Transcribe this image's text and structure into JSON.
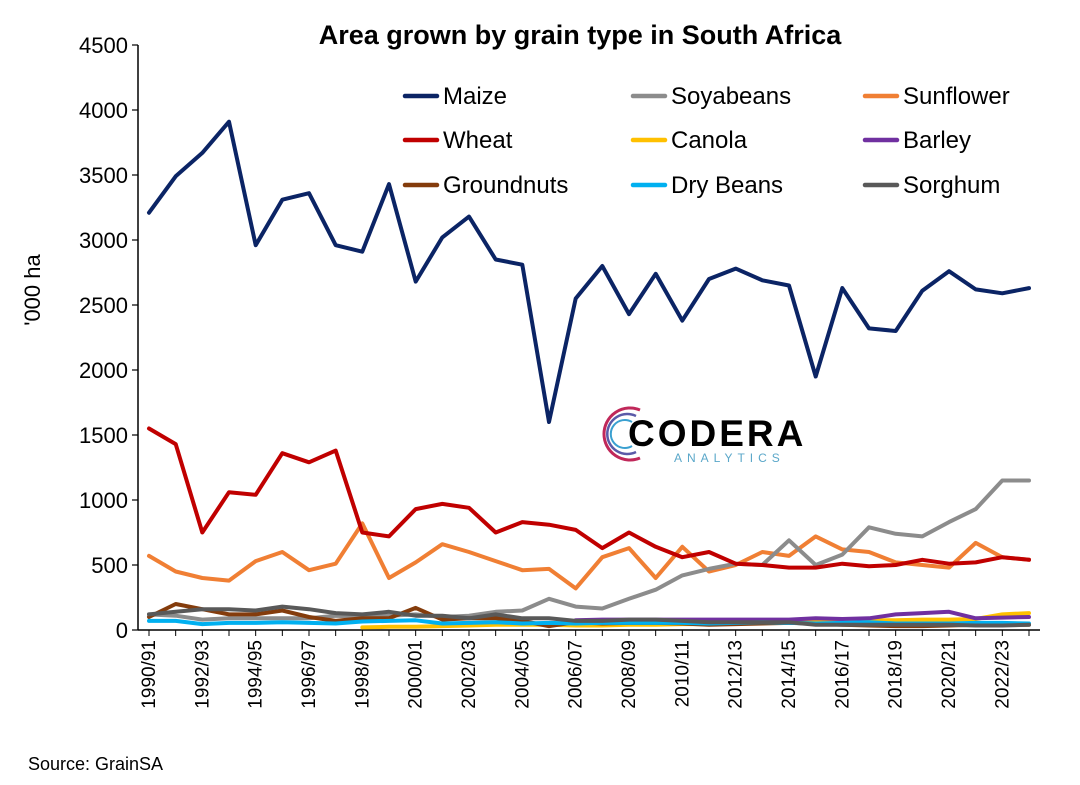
{
  "source": "Source: GrainSA",
  "logo": {
    "name": "CODERA",
    "sub": "ANALYTICS"
  },
  "chart_data": {
    "type": "line",
    "title": "Area grown by grain type in South Africa",
    "ylabel": "'000 ha",
    "xlabel": "",
    "ylim": [
      0,
      4500
    ],
    "yticks": [
      0,
      500,
      1000,
      1500,
      2000,
      2500,
      3000,
      3500,
      4000,
      4500
    ],
    "grid": false,
    "legend_position": "top-right",
    "categories": [
      "1990/91",
      "1991/92",
      "1992/93",
      "1993/94",
      "1994/95",
      "1995/96",
      "1996/97",
      "1997/98",
      "1998/99",
      "1999/00",
      "2000/01",
      "2001/02",
      "2002/03",
      "2003/04",
      "2004/05",
      "2005/06",
      "2006/07",
      "2007/08",
      "2008/09",
      "2009/10",
      "2010/11",
      "2011/12",
      "2012/13",
      "2013/14",
      "2014/15",
      "2015/16",
      "2016/17",
      "2017/18",
      "2018/19",
      "2019/20",
      "2020/21",
      "2021/22",
      "2022/23",
      "2023/24"
    ],
    "xtick_labels": [
      "1990/91",
      "1992/93",
      "1994/95",
      "1996/97",
      "1998/99",
      "2000/01",
      "2002/03",
      "2004/05",
      "2006/07",
      "2008/09",
      "2010/11",
      "2012/13",
      "2014/15",
      "2016/17",
      "2018/19",
      "2020/21",
      "2022/23"
    ],
    "series": [
      {
        "name": "Maize",
        "color": "#0b2465",
        "values": [
          3210,
          3490,
          3670,
          3910,
          2960,
          3310,
          3360,
          2960,
          2910,
          3430,
          2680,
          3020,
          3180,
          2850,
          2810,
          1600,
          2550,
          2800,
          2430,
          2740,
          2380,
          2700,
          2780,
          2690,
          2650,
          1950,
          2630,
          2320,
          2300,
          2610,
          2760,
          2620,
          2590,
          2630
        ]
      },
      {
        "name": "Soyabeans",
        "color": "#8c8c8c",
        "values": [
          120,
          110,
          80,
          90,
          90,
          90,
          90,
          110,
          100,
          110,
          120,
          100,
          110,
          140,
          150,
          240,
          180,
          165,
          240,
          310,
          420,
          470,
          510,
          500,
          690,
          500,
          580,
          790,
          740,
          720,
          830,
          930,
          1150,
          1150
        ]
      },
      {
        "name": "Sunflower",
        "color": "#f07f34",
        "values": [
          570,
          450,
          400,
          380,
          530,
          600,
          460,
          510,
          820,
          400,
          520,
          660,
          600,
          530,
          460,
          470,
          320,
          560,
          630,
          400,
          640,
          450,
          500,
          600,
          570,
          720,
          620,
          600,
          520,
          500,
          480,
          670,
          560,
          540
        ]
      },
      {
        "name": "Wheat",
        "color": "#c00000",
        "values": [
          1550,
          1430,
          750,
          1060,
          1040,
          1360,
          1290,
          1380,
          750,
          720,
          930,
          970,
          940,
          750,
          830,
          810,
          770,
          630,
          750,
          640,
          560,
          600,
          510,
          500,
          480,
          480,
          510,
          490,
          500,
          540,
          510,
          520,
          560,
          540
        ]
      },
      {
        "name": "Canola",
        "color": "#ffc000",
        "values": [
          null,
          null,
          null,
          null,
          null,
          null,
          null,
          null,
          20,
          25,
          25,
          30,
          35,
          40,
          40,
          40,
          35,
          35,
          40,
          40,
          45,
          45,
          50,
          55,
          75,
          70,
          70,
          75,
          75,
          80,
          80,
          85,
          120,
          130
        ]
      },
      {
        "name": "Barley",
        "color": "#7030a0",
        "values": [
          null,
          null,
          null,
          null,
          null,
          null,
          null,
          null,
          null,
          null,
          null,
          null,
          null,
          null,
          null,
          null,
          75,
          80,
          80,
          80,
          80,
          80,
          80,
          80,
          80,
          90,
          85,
          90,
          120,
          130,
          140,
          90,
          95,
          100
        ]
      },
      {
        "name": "Groundnuts",
        "color": "#843c0c",
        "values": [
          100,
          200,
          160,
          120,
          120,
          150,
          100,
          70,
          90,
          90,
          170,
          80,
          90,
          90,
          70,
          30,
          60,
          50,
          55,
          55,
          50,
          40,
          45,
          50,
          55,
          50,
          40,
          35,
          30,
          30,
          35,
          40,
          40,
          40
        ]
      },
      {
        "name": "Dry Beans",
        "color": "#00b0f0",
        "values": [
          70,
          70,
          45,
          55,
          55,
          60,
          55,
          50,
          65,
          70,
          75,
          50,
          55,
          60,
          50,
          55,
          50,
          55,
          55,
          55,
          55,
          50,
          55,
          60,
          55,
          50,
          55,
          60,
          50,
          50,
          50,
          55,
          55,
          50
        ]
      },
      {
        "name": "Sorghum",
        "color": "#595959",
        "values": [
          120,
          140,
          160,
          160,
          150,
          180,
          160,
          130,
          120,
          140,
          110,
          110,
          90,
          120,
          90,
          90,
          70,
          70,
          80,
          80,
          70,
          60,
          60,
          60,
          60,
          40,
          40,
          40,
          40,
          40,
          40,
          35,
          35,
          40
        ]
      }
    ]
  }
}
